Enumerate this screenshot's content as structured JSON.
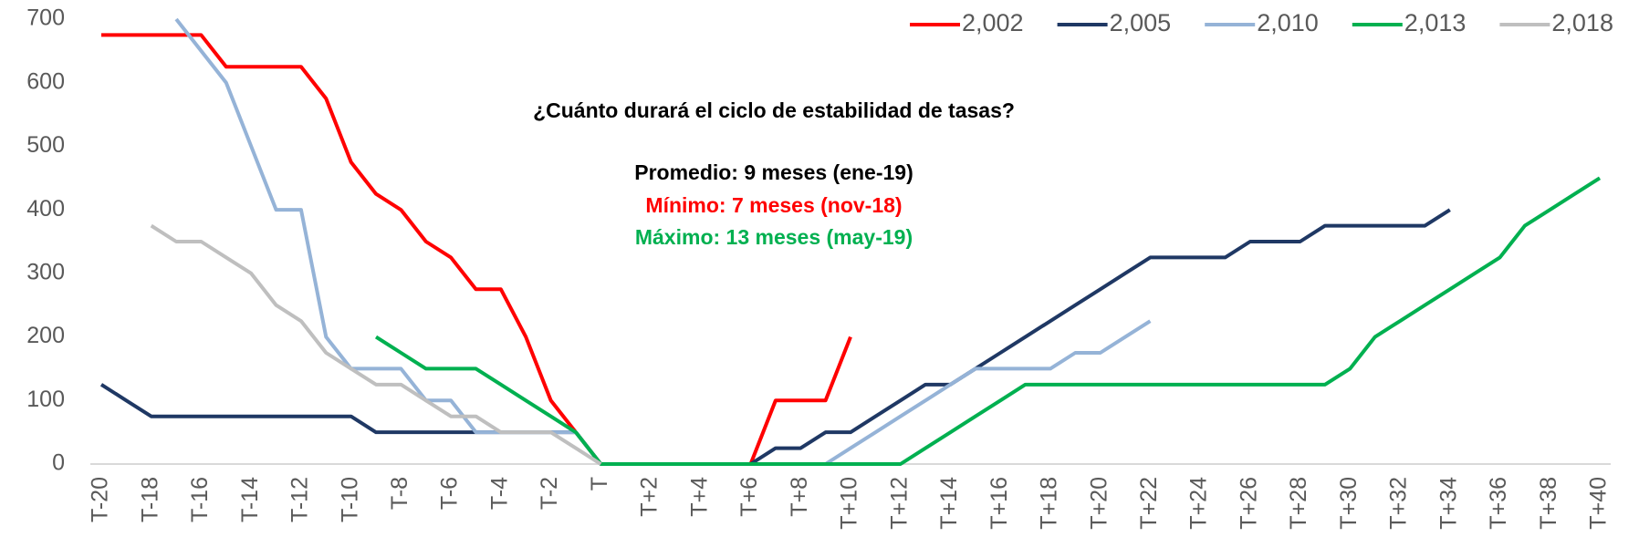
{
  "chart_data": {
    "type": "line",
    "categories": [
      "T-20",
      null,
      "T-18",
      null,
      "T-16",
      null,
      "T-14",
      null,
      "T-12",
      null,
      "T-10",
      null,
      "T-8",
      null,
      "T-6",
      null,
      "T-4",
      null,
      "T-2",
      null,
      "T",
      null,
      "T+2",
      null,
      "T+4",
      null,
      "T+6",
      null,
      "T+8",
      null,
      "T+10",
      null,
      "T+12",
      null,
      "T+14",
      null,
      "T+16",
      null,
      "T+18",
      null,
      "T+20",
      null,
      "T+22",
      null,
      "T+24",
      null,
      "T+26",
      null,
      "T+28",
      null,
      "T+30",
      null,
      "T+32",
      null,
      "T+34",
      null,
      "T+36",
      null,
      "T+38",
      null,
      "T+40"
    ],
    "series": [
      {
        "name": "2,002",
        "color": "#ff0000",
        "values": [
          675,
          675,
          675,
          675,
          675,
          625,
          625,
          625,
          625,
          575,
          475,
          425,
          400,
          350,
          325,
          275,
          275,
          200,
          100,
          50,
          0,
          0,
          0,
          0,
          0,
          0,
          0,
          100,
          100,
          100,
          200,
          null,
          null,
          null,
          null,
          null,
          null,
          null,
          null,
          null,
          null,
          null,
          null,
          null,
          null,
          null,
          null,
          null,
          null,
          null,
          null,
          null,
          null,
          null,
          null,
          null,
          null,
          null,
          null,
          null,
          null
        ]
      },
      {
        "name": "2,005",
        "color": "#1f3864",
        "values": [
          125,
          100,
          75,
          75,
          75,
          75,
          75,
          75,
          75,
          75,
          75,
          50,
          50,
          50,
          50,
          50,
          50,
          50,
          50,
          50,
          0,
          0,
          0,
          0,
          0,
          0,
          0,
          25,
          25,
          50,
          50,
          75,
          100,
          125,
          125,
          150,
          175,
          200,
          225,
          250,
          275,
          300,
          325,
          325,
          325,
          325,
          350,
          350,
          350,
          375,
          375,
          375,
          375,
          375,
          400,
          null,
          null,
          null,
          null,
          null,
          null
        ]
      },
      {
        "name": "2,010",
        "color": "#95b3d7",
        "values": [
          null,
          null,
          null,
          700,
          650,
          600,
          500,
          400,
          400,
          200,
          150,
          150,
          150,
          100,
          100,
          50,
          50,
          50,
          50,
          50,
          0,
          0,
          0,
          0,
          0,
          0,
          0,
          0,
          0,
          0,
          25,
          50,
          75,
          100,
          125,
          150,
          150,
          150,
          150,
          175,
          175,
          200,
          225,
          null,
          null,
          null,
          null,
          null,
          null,
          null,
          null,
          null,
          null,
          null,
          null,
          null,
          null,
          null,
          null,
          null,
          null
        ]
      },
      {
        "name": "2,013",
        "color": "#00b050",
        "values": [
          null,
          null,
          null,
          null,
          null,
          null,
          null,
          null,
          null,
          null,
          null,
          200,
          175,
          150,
          150,
          150,
          125,
          100,
          75,
          50,
          0,
          0,
          0,
          0,
          0,
          0,
          0,
          0,
          0,
          0,
          0,
          0,
          0,
          25,
          50,
          75,
          100,
          125,
          125,
          125,
          125,
          125,
          125,
          125,
          125,
          125,
          125,
          125,
          125,
          125,
          150,
          200,
          225,
          250,
          275,
          300,
          325,
          375,
          400,
          425,
          450
        ]
      },
      {
        "name": "2,018",
        "color": "#bfbfbf",
        "values": [
          null,
          null,
          375,
          350,
          350,
          325,
          300,
          250,
          225,
          175,
          150,
          125,
          125,
          100,
          75,
          75,
          50,
          50,
          50,
          25,
          0,
          null,
          null,
          null,
          null,
          null,
          null,
          null,
          null,
          null,
          null,
          null,
          null,
          null,
          null,
          null,
          null,
          null,
          null,
          null,
          null,
          null,
          null,
          null,
          null,
          null,
          null,
          null,
          null,
          null,
          null,
          null,
          null,
          null,
          null,
          null,
          null,
          null,
          null,
          null,
          null
        ]
      }
    ],
    "ylim": [
      0,
      700
    ],
    "yticks": [
      0,
      100,
      200,
      300,
      400,
      500,
      600,
      700
    ],
    "grid": false,
    "legend": "top-right",
    "annotations": [
      {
        "text": "¿Cuánto durará el ciclo de estabilidad de tasas?",
        "color": "#000000"
      },
      {
        "text": "Promedio: 9 meses (ene-19)",
        "color": "#000000"
      },
      {
        "text": "Mínimo: 7 meses (nov-18)",
        "color": "#ff0000"
      },
      {
        "text": "Máximo: 13 meses (may-19)",
        "color": "#00b050"
      }
    ]
  }
}
